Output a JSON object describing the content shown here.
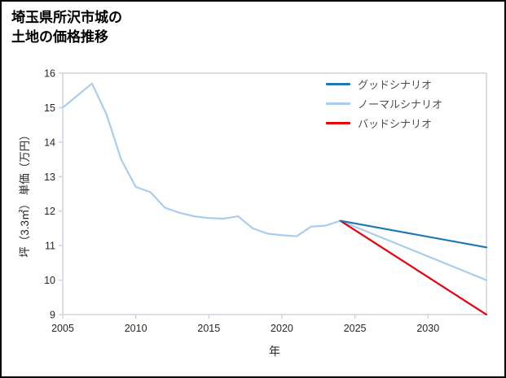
{
  "title": {
    "line1": "埼玉県所沢市城の",
    "line2": "土地の価格推移"
  },
  "chart_data": {
    "type": "line",
    "title": "埼玉県所沢市城の土地の価格推移",
    "xlabel": "年",
    "ylabel": "坪（3.3㎡） 単価（万円）",
    "xlim": [
      2005,
      2034
    ],
    "ylim": [
      9,
      16
    ],
    "xticks": [
      2005,
      2010,
      2015,
      2020,
      2025,
      2030
    ],
    "yticks": [
      9,
      10,
      11,
      12,
      13,
      14,
      15,
      16
    ],
    "grid": false,
    "axis_color": "#ccccdd",
    "legend_position": "upper right",
    "legend": [
      {
        "label": "グッドシナリオ",
        "color": "#1f77b4"
      },
      {
        "label": "ノーマルシナリオ",
        "color": "#a8cdee"
      },
      {
        "label": "バッドシナリオ",
        "color": "#e8000b"
      }
    ],
    "series": [
      {
        "id": "history",
        "color": "#a8cdee",
        "x": [
          2005,
          2006,
          2007,
          2008,
          2009,
          2010,
          2011,
          2012,
          2013,
          2014,
          2015,
          2016,
          2017,
          2018,
          2019,
          2020,
          2021,
          2022,
          2023,
          2024
        ],
        "y": [
          15.0,
          15.35,
          15.7,
          14.8,
          13.5,
          12.7,
          12.55,
          12.1,
          11.95,
          11.85,
          11.8,
          11.78,
          11.85,
          11.5,
          11.35,
          11.3,
          11.27,
          11.55,
          11.58,
          11.72
        ]
      },
      {
        "id": "normal-scenario",
        "color": "#a8cdee",
        "x": [
          2024,
          2034
        ],
        "y": [
          11.72,
          10.0
        ]
      },
      {
        "id": "bad-scenario",
        "color": "#e8000b",
        "x": [
          2024,
          2034
        ],
        "y": [
          11.72,
          9.0
        ]
      },
      {
        "id": "good-scenario",
        "color": "#1f77b4",
        "x": [
          2024,
          2034
        ],
        "y": [
          11.72,
          10.95
        ]
      }
    ]
  }
}
